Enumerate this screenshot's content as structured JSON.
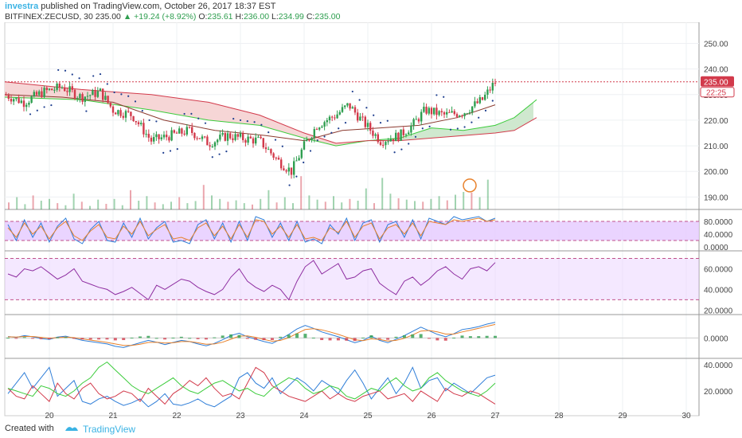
{
  "header": {
    "author": "investra",
    "published_text": "published on TradingView.com, October 26, 2017 18:37 EST",
    "symbol": "BITFINEX:ZECUSD, 30",
    "last": "235.00",
    "change": "+19.24 (+8.92%)",
    "o_label": "O:",
    "o_value": "235.61",
    "h_label": "H:",
    "h_value": "236.00",
    "l_label": "L:",
    "l_value": "234.99",
    "c_label": "C:",
    "c_value": "235.00"
  },
  "footer": {
    "created": "Created with",
    "brand": "TradingView"
  },
  "colors": {
    "up": "#2e9e4f",
    "down": "#d23a4b",
    "cloud_green": "#cfe8cf",
    "cloud_red": "#f6d6d6",
    "rsi_band": "#e6ccff",
    "accent": "#3bb3e4"
  },
  "chart_data": {
    "type": "candlestick",
    "symbol": "BITFINEX:ZECUSD",
    "interval": "30",
    "last_price": 235.0,
    "price_label": "235.00",
    "countdown_label": "22:25",
    "x_tick_labels": [
      "20",
      "21",
      "22",
      "23",
      "24",
      "25",
      "26",
      "27",
      "28",
      "29",
      "30"
    ],
    "x_ticks": [
      20,
      21,
      22,
      23,
      24,
      25,
      26,
      27,
      28,
      29,
      30
    ],
    "x_range": [
      19.3,
      30.2
    ],
    "last_x": 27.0,
    "price_axis": {
      "range": [
        187,
        257
      ],
      "ticks": [
        190,
        200,
        210,
        220,
        230,
        240,
        250
      ],
      "tick_labels": [
        "190.00",
        "200.00",
        "210.00",
        "220.00",
        "230.00",
        "240.00",
        "250.00"
      ]
    },
    "price_path": [
      [
        19.3,
        230
      ],
      [
        19.6,
        227
      ],
      [
        19.9,
        231
      ],
      [
        20.2,
        233
      ],
      [
        20.5,
        229
      ],
      [
        20.8,
        231
      ],
      [
        21.0,
        224
      ],
      [
        21.3,
        222
      ],
      [
        21.6,
        212
      ],
      [
        21.9,
        214
      ],
      [
        22.2,
        216
      ],
      [
        22.5,
        211
      ],
      [
        22.8,
        214
      ],
      [
        23.0,
        213
      ],
      [
        23.3,
        212
      ],
      [
        23.6,
        204
      ],
      [
        23.8,
        200
      ],
      [
        24.0,
        210
      ],
      [
        24.2,
        218
      ],
      [
        24.5,
        222
      ],
      [
        24.7,
        226
      ],
      [
        24.9,
        220
      ],
      [
        25.2,
        212
      ],
      [
        25.5,
        214
      ],
      [
        25.7,
        218
      ],
      [
        25.9,
        224
      ],
      [
        26.2,
        222
      ],
      [
        26.5,
        223
      ],
      [
        26.8,
        228
      ],
      [
        27.0,
        235
      ]
    ],
    "ichimoku": {
      "span_a": [
        [
          19.3,
          229
        ],
        [
          20.5,
          228
        ],
        [
          21.6,
          224
        ],
        [
          22.5,
          220
        ],
        [
          23.3,
          218
        ],
        [
          24.0,
          213
        ],
        [
          24.5,
          210
        ],
        [
          25.0,
          212
        ],
        [
          25.5,
          213
        ],
        [
          26.0,
          217
        ],
        [
          26.5,
          216
        ],
        [
          27.0,
          218
        ],
        [
          27.3,
          221
        ],
        [
          27.65,
          228
        ]
      ],
      "span_b": [
        [
          19.3,
          235
        ],
        [
          20.5,
          232
        ],
        [
          21.6,
          230
        ],
        [
          22.5,
          227
        ],
        [
          23.3,
          222
        ],
        [
          24.0,
          215
        ],
        [
          24.5,
          211
        ],
        [
          25.0,
          212
        ],
        [
          25.5,
          212
        ],
        [
          26.0,
          213
        ],
        [
          26.5,
          214
        ],
        [
          27.0,
          215
        ],
        [
          27.3,
          216
        ],
        [
          27.65,
          221
        ]
      ],
      "base_line": [
        [
          19.3,
          230
        ],
        [
          20.2,
          229
        ],
        [
          21.0,
          227
        ],
        [
          21.8,
          220
        ],
        [
          22.6,
          216
        ],
        [
          23.4,
          214
        ],
        [
          24.0,
          212
        ],
        [
          24.6,
          216
        ],
        [
          25.2,
          217
        ],
        [
          25.8,
          218
        ],
        [
          26.4,
          221
        ],
        [
          27.0,
          226
        ]
      ]
    },
    "volume_scale_max": 100,
    "volume": [
      20,
      35,
      15,
      40,
      25,
      30,
      18,
      12,
      45,
      22,
      10,
      28,
      16,
      30,
      12,
      55,
      25,
      38,
      20,
      15,
      22,
      35,
      18,
      24,
      70,
      40,
      30,
      22,
      26,
      18,
      14,
      30,
      55,
      20,
      35,
      18,
      95,
      40,
      28,
      22,
      38,
      20,
      30,
      25,
      60,
      18,
      90,
      45,
      32,
      28,
      24,
      22,
      30,
      38,
      26,
      42,
      50,
      48,
      35,
      85
    ],
    "panels": [
      {
        "name": "rsi_stoch",
        "range": [
          -5,
          110
        ],
        "ticks": [
          0,
          40,
          80
        ],
        "tick_labels": [
          "0.0000",
          "40.0000",
          "80.0000"
        ],
        "band": [
          20,
          80
        ],
        "series": [
          {
            "color": "#2f7ed8",
            "values": [
              70,
              20,
              85,
              30,
              75,
              15,
              65,
              90,
              25,
              10,
              55,
              80,
              20,
              15,
              75,
              30,
              90,
              25,
              60,
              80,
              15,
              20,
              10,
              70,
              85,
              25,
              75,
              15,
              80,
              20,
              95,
              85,
              30,
              75,
              20,
              80,
              15,
              25,
              10,
              70,
              40,
              90,
              20,
              75,
              85,
              15,
              70,
              80,
              30,
              85,
              25,
              90,
              80,
              70,
              95,
              85,
              90,
              95,
              80,
              90
            ]
          },
          {
            "color": "#e8812a",
            "values": [
              60,
              30,
              75,
              40,
              65,
              25,
              60,
              80,
              35,
              20,
              50,
              70,
              30,
              25,
              65,
              40,
              80,
              35,
              55,
              70,
              25,
              30,
              20,
              60,
              75,
              35,
              65,
              25,
              70,
              30,
              85,
              80,
              40,
              65,
              30,
              70,
              25,
              30,
              20,
              60,
              45,
              80,
              30,
              65,
              75,
              25,
              60,
              70,
              40,
              75,
              35,
              80,
              75,
              70,
              85,
              80,
              85,
              90,
              80,
              85
            ]
          }
        ]
      },
      {
        "name": "rsi",
        "range": [
          18,
          75
        ],
        "ticks": [
          20,
          40,
          60
        ],
        "tick_labels": [
          "20.0000",
          "40.0000",
          "60.0000"
        ],
        "band": [
          30,
          70
        ],
        "series": [
          {
            "color": "#8e2ea1",
            "values": [
              55,
              52,
              60,
              58,
              62,
              56,
              50,
              54,
              60,
              48,
              45,
              42,
              40,
              35,
              38,
              42,
              36,
              30,
              44,
              40,
              45,
              50,
              48,
              42,
              38,
              35,
              40,
              52,
              60,
              48,
              42,
              38,
              44,
              40,
              30,
              48,
              62,
              68,
              55,
              60,
              65,
              50,
              52,
              58,
              60,
              46,
              40,
              35,
              48,
              52,
              44,
              50,
              58,
              62,
              55,
              50,
              60,
              62,
              58,
              66
            ]
          }
        ]
      },
      {
        "name": "macd",
        "range": [
          -6,
          7
        ],
        "ticks": [
          0
        ],
        "tick_labels": [
          "0.0000"
        ],
        "series": [
          {
            "color": "#2f7ed8",
            "values": [
              0.5,
              0.2,
              0.8,
              0.4,
              -0.2,
              -0.5,
              0.3,
              0.6,
              -0.1,
              -0.8,
              -1.2,
              -1.6,
              -2.0,
              -2.8,
              -3.2,
              -2.4,
              -1.6,
              -0.8,
              -1.4,
              -2.2,
              -1.5,
              -0.8,
              -1.2,
              -2.0,
              -2.6,
              -1.8,
              -0.6,
              0.8,
              1.6,
              0.4,
              -0.4,
              -1.2,
              -1.8,
              -0.4,
              1.2,
              3.0,
              4.2,
              3.2,
              2.0,
              1.2,
              0.4,
              -0.6,
              -1.6,
              -0.8,
              0.6,
              -0.8,
              -1.6,
              -0.4,
              0.8,
              2.2,
              3.6,
              2.4,
              1.2,
              0.4,
              1.4,
              2.8,
              3.2,
              3.8,
              4.6,
              5.2
            ]
          },
          {
            "color": "#e8812a",
            "values": [
              0.4,
              0.3,
              0.5,
              0.5,
              0.2,
              -0.1,
              0.1,
              0.3,
              0.1,
              -0.3,
              -0.7,
              -1.1,
              -1.5,
              -2.0,
              -2.5,
              -2.5,
              -2.1,
              -1.5,
              -1.4,
              -1.7,
              -1.6,
              -1.2,
              -1.2,
              -1.6,
              -2.1,
              -2.0,
              -1.4,
              -0.4,
              0.6,
              0.7,
              0.2,
              -0.5,
              -1.1,
              -0.8,
              0.1,
              1.5,
              2.8,
              3.1,
              2.7,
              2.0,
              1.2,
              0.3,
              -0.6,
              -0.9,
              -0.3,
              -0.5,
              -1.0,
              -0.8,
              -0.1,
              1.0,
              2.3,
              2.5,
              2.0,
              1.3,
              1.3,
              2.0,
              2.6,
              3.2,
              3.9,
              4.5
            ]
          },
          {
            "color": "#d23a4b",
            "type": "histogram",
            "values": [
              0.1,
              -0.1,
              0.3,
              -0.1,
              -0.4,
              -0.4,
              0.2,
              0.3,
              -0.2,
              -0.5,
              -0.5,
              -0.5,
              -0.5,
              -0.8,
              -0.7,
              0.1,
              0.5,
              0.7,
              0.0,
              -0.5,
              0.1,
              0.4,
              0.0,
              -0.4,
              -0.5,
              0.2,
              0.8,
              1.2,
              1.0,
              -0.3,
              -0.6,
              -0.7,
              -0.7,
              0.4,
              1.1,
              1.5,
              1.4,
              0.1,
              -0.7,
              -0.8,
              -0.8,
              -0.9,
              -1.0,
              0.1,
              0.9,
              -0.3,
              -0.6,
              0.4,
              0.9,
              1.2,
              1.3,
              -0.1,
              -0.8,
              -0.9,
              0.1,
              0.8,
              0.6,
              0.6,
              0.7,
              0.7
            ]
          }
        ]
      },
      {
        "name": "dmi",
        "range": [
          3,
          43
        ],
        "ticks": [
          20,
          40
        ],
        "tick_labels": [
          "20.0000",
          "40.0000"
        ],
        "series": [
          {
            "color": "#2f7ed8",
            "values": [
              18,
              26,
              34,
              22,
              30,
              38,
              16,
              22,
              28,
              12,
              10,
              14,
              16,
              12,
              9,
              11,
              14,
              8,
              12,
              18,
              10,
              9,
              11,
              14,
              10,
              8,
              12,
              16,
              30,
              34,
              26,
              22,
              30,
              18,
              24,
              30,
              26,
              20,
              28,
              24,
              18,
              28,
              36,
              26,
              14,
              22,
              30,
              18,
              26,
              38,
              22,
              28,
              30,
              20,
              26,
              22,
              18,
              24,
              30,
              32
            ]
          },
          {
            "color": "#d23a4b",
            "values": [
              22,
              16,
              14,
              24,
              18,
              12,
              26,
              18,
              14,
              22,
              26,
              18,
              14,
              16,
              20,
              18,
              12,
              22,
              16,
              10,
              18,
              22,
              28,
              24,
              30,
              22,
              16,
              18,
              14,
              26,
              38,
              34,
              24,
              20,
              16,
              14,
              12,
              16,
              20,
              14,
              18,
              14,
              12,
              16,
              18,
              20,
              14,
              16,
              18,
              12,
              20,
              16,
              12,
              22,
              18,
              16,
              20,
              18,
              14,
              10
            ]
          },
          {
            "color": "#3ccc3c",
            "values": [
              22,
              20,
              18,
              16,
              24,
              22,
              18,
              16,
              20,
              26,
              30,
              38,
              42,
              36,
              30,
              24,
              20,
              18,
              22,
              26,
              30,
              24,
              20,
              18,
              22,
              26,
              28,
              24,
              20,
              22,
              18,
              16,
              22,
              26,
              30,
              28,
              22,
              18,
              20,
              24,
              22,
              16,
              14,
              18,
              22,
              20,
              26,
              30,
              24,
              20,
              22,
              30,
              34,
              28,
              24,
              20,
              18,
              16,
              20,
              26
            ]
          }
        ]
      }
    ]
  }
}
